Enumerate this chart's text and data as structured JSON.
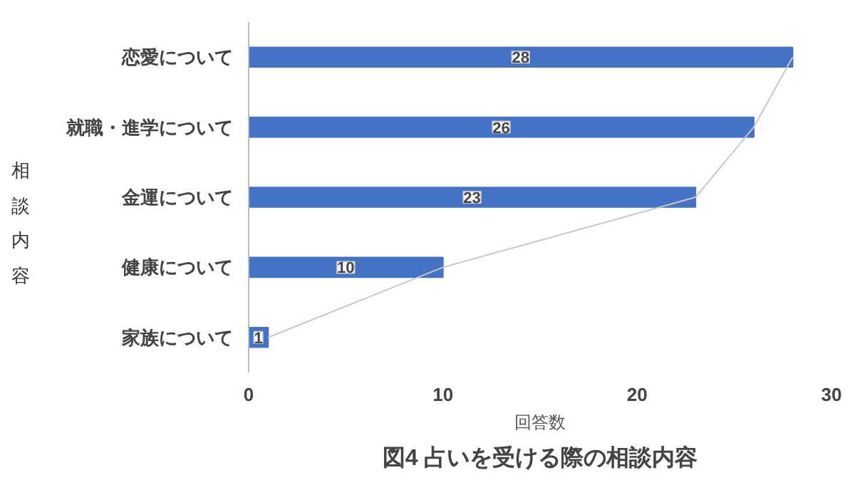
{
  "chart_data": {
    "type": "bar",
    "orientation": "horizontal",
    "title": "図4 占いを受ける際の相談内容",
    "xlabel": "回答数",
    "ylabel": "相談内容",
    "categories": [
      "恋愛について",
      "就職・進学について",
      "金運について",
      "健康について",
      "家族について"
    ],
    "series": [
      {
        "color": "#4472c4",
        "values": [
          28,
          26,
          23,
          10,
          1
        ],
        "value_labels": [
          "28",
          "26",
          "23",
          "10",
          "1"
        ]
      },
      {
        "type": "line",
        "color": "#c8c8c8",
        "values": [
          28,
          26,
          23,
          10,
          1
        ]
      }
    ],
    "xlim": [
      0,
      30
    ],
    "xticks": [
      0,
      10,
      20,
      30
    ],
    "grid": false
  }
}
